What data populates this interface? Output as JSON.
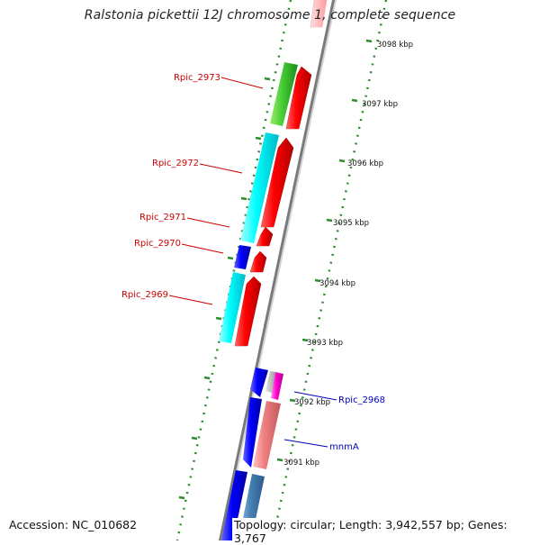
{
  "title": "Ralstonia pickettii 12J chromosome 1, complete sequence",
  "footer": {
    "accession": "Accession: NC_010682",
    "summary": "Topology: circular; Length: 3,942,557 bp; Genes: 3,767"
  },
  "colors": {
    "backbone": "#808080",
    "tick": "#2e8b2e",
    "forward_label": "#cc0000",
    "reverse_label": "#0000bb"
  },
  "ticks": [
    {
      "label": "3098 kbp"
    },
    {
      "label": "3097 kbp"
    },
    {
      "label": "3096 kbp"
    },
    {
      "label": "3095 kbp"
    },
    {
      "label": "3094 kbp"
    },
    {
      "label": "3093 kbp"
    },
    {
      "label": "3092 kbp"
    },
    {
      "label": "3091 kbp"
    }
  ],
  "gene_labels": [
    {
      "text": "Rpic_2973",
      "strand": "forward"
    },
    {
      "text": "Rpic_2972",
      "strand": "forward"
    },
    {
      "text": "Rpic_2971",
      "strand": "forward"
    },
    {
      "text": "Rpic_2970",
      "strand": "forward"
    },
    {
      "text": "Rpic_2969",
      "strand": "forward"
    },
    {
      "text": "Rpic_2968",
      "strand": "reverse"
    },
    {
      "text": "mnmA",
      "strand": "reverse"
    }
  ]
}
